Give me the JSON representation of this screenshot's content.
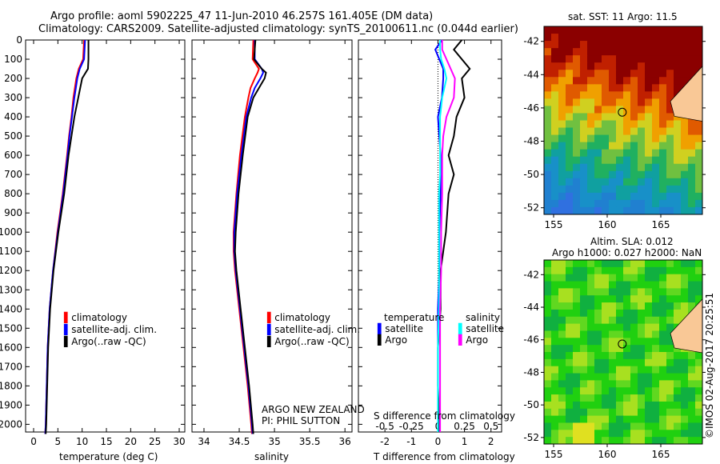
{
  "title_line1": "Argo profile: aoml 5902225_47 11-Jun-2010 46.257S 161.405E (DM data)",
  "title_line2": "Climatology: CARS2009. Satellite-adjusted climatology: synTS_20100611.nc (0.044d earlier)",
  "colors": {
    "climatology": "#ff0000",
    "satellite": "#0000ff",
    "argo": "#000000",
    "sal_satellite": "#00ffff",
    "sal_argo": "#ff00ff",
    "land": "#f9c896"
  },
  "chart_data": [
    {
      "type": "line",
      "name": "temperature",
      "xlabel": "temperature (deg C)",
      "ylabel": "depth",
      "xlim": [
        -1.65,
        31.15
      ],
      "ylim": [
        2040,
        0
      ],
      "xticks": [
        0,
        5,
        10,
        15,
        20,
        25,
        30
      ],
      "yticks": [
        0,
        100,
        200,
        300,
        400,
        500,
        600,
        700,
        800,
        900,
        1000,
        1100,
        1200,
        1300,
        1400,
        1500,
        1600,
        1700,
        1800,
        1900,
        2000
      ],
      "depth": [
        0,
        100,
        150,
        200,
        300,
        400,
        500,
        600,
        800,
        1000,
        1200,
        1400,
        1600,
        1800,
        2000,
        2050
      ],
      "legend": [
        "climatology",
        "satellite-adj. clim.",
        "Argo(..raw -QC)"
      ],
      "series": [
        {
          "name": "climatology",
          "color": "#ff0000",
          "values": [
            10.4,
            10.2,
            9.3,
            8.8,
            8.2,
            7.8,
            7.3,
            6.9,
            6.0,
            4.9,
            4.0,
            3.3,
            2.9,
            2.7,
            2.5,
            2.4
          ]
        },
        {
          "name": "satellite-adj. clim.",
          "color": "#0000ff",
          "values": [
            10.6,
            10.4,
            9.5,
            9.0,
            8.4,
            7.9,
            7.4,
            7.0,
            6.1,
            5.0,
            4.0,
            3.3,
            2.9,
            2.7,
            2.5,
            2.4
          ]
        },
        {
          "name": "Argo(..raw -QC)",
          "color": "#000000",
          "values": [
            11.3,
            11.3,
            11.2,
            10.0,
            9.2,
            8.4,
            7.8,
            7.2,
            6.3,
            5.1,
            4.1,
            3.4,
            3.0,
            2.8,
            2.6,
            2.5
          ]
        }
      ]
    },
    {
      "type": "line",
      "name": "salinity",
      "xlabel": "salinity",
      "xlim": [
        33.83,
        36.1
      ],
      "ylim": [
        2040,
        0
      ],
      "xticks": [
        34,
        34.5,
        35,
        35.5,
        36
      ],
      "depth": [
        0,
        100,
        150,
        170,
        200,
        250,
        300,
        400,
        600,
        800,
        1000,
        1100,
        1200,
        1400,
        1600,
        1800,
        2000,
        2050
      ],
      "legend": [
        "climatology",
        "satellite-adj. clim.",
        "Argo(..raw -QC)"
      ],
      "annotation_line1": "ARGO NEW ZEALAND",
      "annotation_line2": "PI: PHIL SUTTON",
      "series": [
        {
          "name": "climatology",
          "color": "#ff0000",
          "values": [
            34.7,
            34.69,
            34.78,
            34.76,
            34.72,
            34.66,
            34.63,
            34.58,
            34.51,
            34.46,
            34.42,
            34.42,
            34.44,
            34.5,
            34.56,
            34.62,
            34.67,
            34.68
          ]
        },
        {
          "name": "satellite-adj. clim.",
          "color": "#0000ff",
          "values": [
            34.72,
            34.72,
            34.82,
            34.84,
            34.8,
            34.72,
            34.67,
            34.6,
            34.53,
            34.47,
            34.43,
            34.43,
            34.45,
            34.51,
            34.57,
            34.63,
            34.68,
            34.69
          ]
        },
        {
          "name": "Argo(..raw -QC)",
          "color": "#000000",
          "values": [
            34.73,
            34.71,
            34.82,
            34.88,
            34.86,
            34.78,
            34.7,
            34.62,
            34.55,
            34.49,
            34.45,
            34.44,
            34.46,
            34.52,
            34.58,
            34.64,
            34.69,
            34.7
          ]
        }
      ]
    },
    {
      "type": "line",
      "name": "difference",
      "xlabel": "T difference from climatology",
      "x2label": "S difference from climatology",
      "xlim": [
        -3.0,
        2.4
      ],
      "ylim": [
        2040,
        0
      ],
      "xticks": [
        -2,
        -1,
        0,
        1,
        2
      ],
      "x2ticks": [
        "-0.5",
        "-0.25",
        "0",
        "0.25",
        "0.5"
      ],
      "legend_temperature": {
        "title": "temperature",
        "items": [
          "satellite",
          "Argo"
        ]
      },
      "legend_salinity": {
        "title": "salinity",
        "items": [
          "satellite",
          "Argo"
        ]
      },
      "depth": [
        0,
        50,
        100,
        150,
        200,
        300,
        400,
        500,
        600,
        700,
        800,
        1000,
        1200,
        1400,
        1600,
        1800,
        2000,
        2040
      ],
      "series": [
        {
          "name": "temperature satellite",
          "color": "#0000ff",
          "values": [
            0.15,
            -0.1,
            0.05,
            0.2,
            0.2,
            0.15,
            0.0,
            0.05,
            0.1,
            0.1,
            0.1,
            0.05,
            0.05,
            0.0,
            0.0,
            0.0,
            0.0,
            0.0
          ]
        },
        {
          "name": "temperature Argo",
          "color": "#000000",
          "values": [
            0.9,
            0.6,
            0.9,
            1.2,
            0.9,
            1.0,
            0.7,
            0.6,
            0.4,
            0.6,
            0.4,
            0.3,
            0.1,
            0.1,
            0.0,
            0.0,
            0.05,
            0.05
          ]
        },
        {
          "name": "salinity satellite",
          "color": "#00ffff",
          "values": [
            0.02,
            0.02,
            0.03,
            0.06,
            0.08,
            0.04,
            0.02,
            0.02,
            0.02,
            0.02,
            0.01,
            0.01,
            0.01,
            0.01,
            0.0,
            0.0,
            0.0,
            0.0
          ]
        },
        {
          "name": "salinity Argo",
          "color": "#ff00ff",
          "values": [
            0.04,
            0.04,
            0.08,
            0.12,
            0.16,
            0.15,
            0.08,
            0.05,
            0.04,
            0.04,
            0.04,
            0.03,
            0.03,
            0.02,
            0.02,
            0.02,
            0.02,
            0.02
          ]
        }
      ]
    }
  ],
  "map_sst": {
    "title": "sat. SST: 11 Argo: 11.5",
    "xticks": [
      "155",
      "160",
      "165"
    ],
    "yticks": [
      "-42",
      "-44",
      "-46",
      "-48",
      "-50",
      "-52"
    ],
    "float_lon": 161.405,
    "float_lat": -46.257
  },
  "map_sla": {
    "title_line1": "Altim. SLA: 0.012",
    "title_line2": "Argo h1000: 0.027 h2000: NaN",
    "xticks": [
      "155",
      "160",
      "165"
    ],
    "yticks": [
      "-42",
      "-44",
      "-46",
      "-48",
      "-50",
      "-52"
    ],
    "float_lon": 161.405,
    "float_lat": -46.257
  },
  "credit": "©IMOS 02-Aug-2017 20:25:51"
}
